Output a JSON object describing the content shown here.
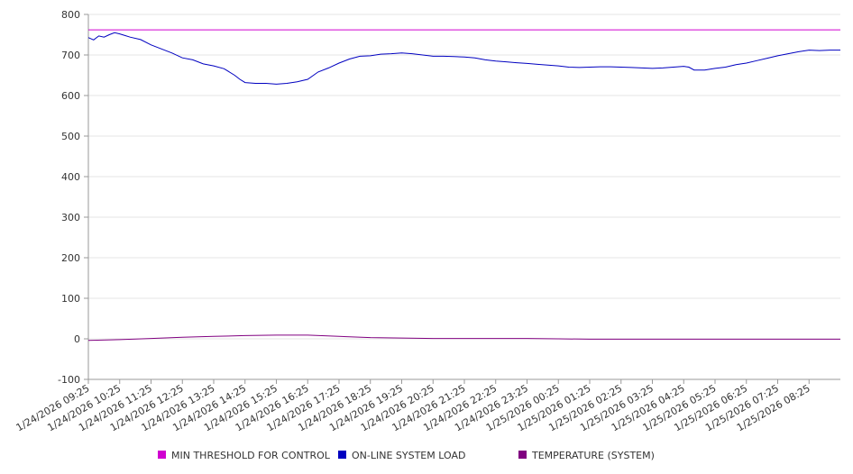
{
  "chart_data": {
    "type": "line",
    "title": "",
    "xlabel": "",
    "ylabel": "",
    "ylim": [
      -100,
      800
    ],
    "y_ticks": [
      800,
      700,
      600,
      500,
      400,
      300,
      200,
      100,
      0,
      -100
    ],
    "x_tick_labels": [
      "1/24/2026 09:25",
      "1/24/2026 10:25",
      "1/24/2026 11:25",
      "1/24/2026 12:25",
      "1/24/2026 13:25",
      "1/24/2026 14:25",
      "1/24/2026 15:25",
      "1/24/2026 16:25",
      "1/24/2026 17:25",
      "1/24/2026 18:25",
      "1/24/2026 19:25",
      "1/24/2026 20:25",
      "1/24/2026 21:25",
      "1/24/2026 22:25",
      "1/24/2026 23:25",
      "1/25/2026 00:25",
      "1/25/2026 01:25",
      "1/25/2026 02:25",
      "1/25/2026 03:25",
      "1/25/2026 04:25",
      "1/25/2026 05:25",
      "1/25/2026 06:25",
      "1/25/2026 07:25",
      "1/25/2026 08:25"
    ],
    "x_range": [
      "1/24/2026 09:25",
      "1/25/2026 09:25"
    ],
    "grid": "horizontal",
    "legend_position": "bottom",
    "series": [
      {
        "name": "MIN THRESHOLD FOR CONTROL",
        "color": "#d000d0",
        "x": [
          "1/24/2026 09:25",
          "1/25/2026 09:25"
        ],
        "values": [
          762,
          762
        ]
      },
      {
        "name": "ON-LINE SYSTEM LOAD",
        "color": "#0000c0",
        "x": [
          "1/24/2026 09:25",
          "1/24/2026 09:35",
          "1/24/2026 09:45",
          "1/24/2026 09:55",
          "1/24/2026 10:05",
          "1/24/2026 10:15",
          "1/24/2026 10:25",
          "1/24/2026 10:35",
          "1/24/2026 10:45",
          "1/24/2026 11:05",
          "1/24/2026 11:25",
          "1/24/2026 11:45",
          "1/24/2026 12:05",
          "1/24/2026 12:25",
          "1/24/2026 12:45",
          "1/24/2026 13:05",
          "1/24/2026 13:25",
          "1/24/2026 13:45",
          "1/24/2026 14:05",
          "1/24/2026 14:15",
          "1/24/2026 14:25",
          "1/24/2026 14:45",
          "1/24/2026 15:05",
          "1/24/2026 15:25",
          "1/24/2026 15:45",
          "1/24/2026 16:05",
          "1/24/2026 16:25",
          "1/24/2026 16:45",
          "1/24/2026 17:05",
          "1/24/2026 17:25",
          "1/24/2026 17:45",
          "1/24/2026 18:05",
          "1/24/2026 18:25",
          "1/24/2026 18:45",
          "1/24/2026 19:05",
          "1/24/2026 19:25",
          "1/24/2026 19:45",
          "1/24/2026 20:05",
          "1/24/2026 20:25",
          "1/24/2026 20:45",
          "1/24/2026 21:05",
          "1/24/2026 21:25",
          "1/24/2026 21:45",
          "1/24/2026 22:05",
          "1/24/2026 22:25",
          "1/24/2026 22:45",
          "1/24/2026 23:05",
          "1/24/2026 23:25",
          "1/24/2026 23:45",
          "1/25/2026 00:05",
          "1/25/2026 00:25",
          "1/25/2026 00:45",
          "1/25/2026 01:05",
          "1/25/2026 01:25",
          "1/25/2026 01:45",
          "1/25/2026 02:05",
          "1/25/2026 02:25",
          "1/25/2026 02:45",
          "1/25/2026 03:05",
          "1/25/2026 03:25",
          "1/25/2026 03:45",
          "1/25/2026 04:05",
          "1/25/2026 04:25",
          "1/25/2026 04:35",
          "1/25/2026 04:45",
          "1/25/2026 05:05",
          "1/25/2026 05:25",
          "1/25/2026 05:45",
          "1/25/2026 06:05",
          "1/25/2026 06:25",
          "1/25/2026 06:45",
          "1/25/2026 07:05",
          "1/25/2026 07:25",
          "1/25/2026 07:45",
          "1/25/2026 08:05",
          "1/25/2026 08:25",
          "1/25/2026 08:45",
          "1/25/2026 09:05",
          "1/25/2026 09:25"
        ],
        "values": [
          743,
          737,
          747,
          744,
          750,
          755,
          752,
          748,
          744,
          738,
          725,
          715,
          705,
          693,
          688,
          678,
          673,
          666,
          650,
          640,
          632,
          630,
          630,
          628,
          630,
          634,
          640,
          658,
          668,
          680,
          690,
          697,
          698,
          702,
          703,
          705,
          703,
          700,
          697,
          697,
          696,
          695,
          693,
          688,
          685,
          683,
          681,
          679,
          677,
          675,
          673,
          670,
          669,
          670,
          671,
          671,
          670,
          669,
          668,
          667,
          668,
          670,
          672,
          670,
          663,
          663,
          667,
          670,
          676,
          680,
          686,
          692,
          698,
          703,
          708,
          712,
          711,
          712,
          712
        ]
      },
      {
        "name": "TEMPERATURE (SYSTEM)",
        "color": "#800080",
        "x": [
          "1/24/2026 09:25",
          "1/24/2026 10:25",
          "1/24/2026 11:25",
          "1/24/2026 12:25",
          "1/24/2026 13:25",
          "1/24/2026 14:25",
          "1/24/2026 15:25",
          "1/24/2026 16:25",
          "1/24/2026 17:25",
          "1/24/2026 18:25",
          "1/24/2026 19:25",
          "1/24/2026 20:25",
          "1/24/2026 21:25",
          "1/24/2026 22:25",
          "1/24/2026 23:25",
          "1/25/2026 00:25",
          "1/25/2026 01:25",
          "1/25/2026 02:25",
          "1/25/2026 03:25",
          "1/25/2026 04:25",
          "1/25/2026 05:25",
          "1/25/2026 06:25",
          "1/25/2026 07:25",
          "1/25/2026 08:25",
          "1/25/2026 09:25"
        ],
        "values": [
          -4,
          -2,
          1,
          4,
          6,
          8,
          9,
          9,
          6,
          3,
          2,
          1,
          1,
          1,
          1,
          0,
          -1,
          -1,
          -1,
          -1,
          -1,
          -1,
          -1,
          -1,
          -1
        ]
      }
    ]
  }
}
